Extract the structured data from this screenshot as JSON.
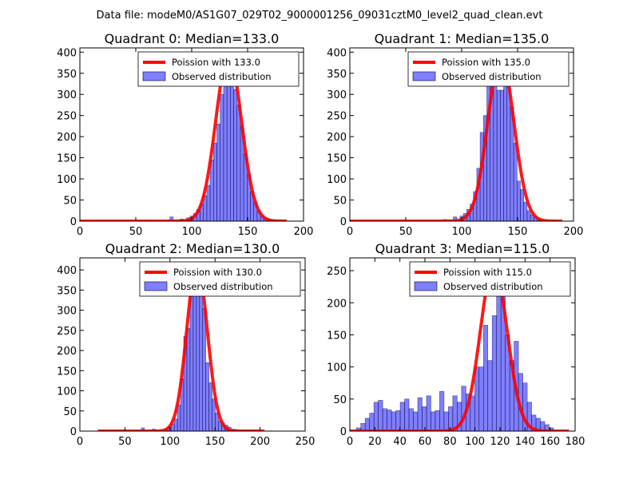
{
  "figure": {
    "suptitle": "Data file: modeM0/AS1G07_029T02_9000001256_09031cztM0_level2_quad_clean.evt"
  },
  "chart_data": [
    {
      "type": "bar",
      "id": "q0",
      "title": "Quadrant 0: Median=133.0",
      "xlim": [
        0,
        200
      ],
      "ylim": [
        0,
        410
      ],
      "xticks": [
        0,
        50,
        100,
        150,
        200
      ],
      "yticks": [
        0,
        50,
        100,
        150,
        200,
        250,
        300,
        350,
        400
      ],
      "legend": {
        "location": "top-right",
        "entries": [
          "Poission with 133.0",
          "Observed distribution"
        ]
      },
      "fit_line": {
        "label": "Poission with 133.0",
        "mean": 133,
        "peak": 392,
        "xrange": [
          0,
          185
        ],
        "color": "#ff0000"
      },
      "bin_width": 3,
      "histogram": {
        "label": "Observed distribution",
        "color": "#0000ff",
        "bins": [
          {
            "x": 82,
            "count": 10
          },
          {
            "x": 91,
            "count": 5
          },
          {
            "x": 97,
            "count": 8
          },
          {
            "x": 100,
            "count": 12
          },
          {
            "x": 103,
            "count": 18
          },
          {
            "x": 106,
            "count": 28
          },
          {
            "x": 109,
            "count": 40
          },
          {
            "x": 112,
            "count": 60
          },
          {
            "x": 115,
            "count": 85
          },
          {
            "x": 118,
            "count": 145
          },
          {
            "x": 121,
            "count": 185
          },
          {
            "x": 124,
            "count": 230
          },
          {
            "x": 127,
            "count": 300
          },
          {
            "x": 130,
            "count": 338
          },
          {
            "x": 133,
            "count": 350
          },
          {
            "x": 136,
            "count": 338
          },
          {
            "x": 139,
            "count": 312
          },
          {
            "x": 142,
            "count": 275
          },
          {
            "x": 145,
            "count": 225
          },
          {
            "x": 148,
            "count": 160
          },
          {
            "x": 151,
            "count": 110
          },
          {
            "x": 154,
            "count": 70
          },
          {
            "x": 157,
            "count": 45
          },
          {
            "x": 160,
            "count": 25
          },
          {
            "x": 163,
            "count": 12
          },
          {
            "x": 166,
            "count": 8
          },
          {
            "x": 169,
            "count": 5
          },
          {
            "x": 172,
            "count": 3
          },
          {
            "x": 175,
            "count": 2
          }
        ]
      }
    },
    {
      "type": "bar",
      "id": "q1",
      "title": "Quadrant 1: Median=135.0",
      "xlim": [
        0,
        200
      ],
      "ylim": [
        0,
        410
      ],
      "xticks": [
        0,
        50,
        100,
        150,
        200
      ],
      "yticks": [
        0,
        50,
        100,
        150,
        200,
        250,
        300,
        350,
        400
      ],
      "legend": {
        "location": "top-right",
        "entries": [
          "Poission with 135.0",
          "Observed distribution"
        ]
      },
      "fit_line": {
        "label": "Poission with 135.0",
        "mean": 135,
        "peak": 390,
        "xrange": [
          0,
          190
        ],
        "color": "#ff0000"
      },
      "bin_width": 3,
      "histogram": {
        "label": "Observed distribution",
        "color": "#0000ff",
        "bins": [
          {
            "x": 85,
            "count": 4
          },
          {
            "x": 94,
            "count": 10
          },
          {
            "x": 100,
            "count": 12
          },
          {
            "x": 103,
            "count": 18
          },
          {
            "x": 106,
            "count": 28
          },
          {
            "x": 109,
            "count": 40
          },
          {
            "x": 112,
            "count": 70
          },
          {
            "x": 115,
            "count": 125
          },
          {
            "x": 118,
            "count": 210
          },
          {
            "x": 121,
            "count": 250
          },
          {
            "x": 124,
            "count": 340
          },
          {
            "x": 127,
            "count": 340
          },
          {
            "x": 130,
            "count": 355
          },
          {
            "x": 133,
            "count": 310
          },
          {
            "x": 136,
            "count": 310
          },
          {
            "x": 139,
            "count": 360
          },
          {
            "x": 142,
            "count": 325
          },
          {
            "x": 145,
            "count": 270
          },
          {
            "x": 148,
            "count": 185
          },
          {
            "x": 151,
            "count": 95
          },
          {
            "x": 154,
            "count": 75
          },
          {
            "x": 157,
            "count": 45
          },
          {
            "x": 160,
            "count": 25
          },
          {
            "x": 163,
            "count": 15
          },
          {
            "x": 166,
            "count": 10
          },
          {
            "x": 169,
            "count": 5
          },
          {
            "x": 172,
            "count": 3
          }
        ]
      }
    },
    {
      "type": "bar",
      "id": "q2",
      "title": "Quadrant 2: Median=130.0",
      "xlim": [
        0,
        250
      ],
      "ylim": [
        0,
        430
      ],
      "xticks": [
        0,
        50,
        100,
        150,
        200,
        250
      ],
      "yticks": [
        0,
        50,
        100,
        150,
        200,
        250,
        300,
        350,
        400
      ],
      "legend": {
        "location": "top-right",
        "entries": [
          "Poission with 130.0",
          "Observed distribution"
        ]
      },
      "fit_line": {
        "label": "Poission with 130.0",
        "mean": 130,
        "peak": 415,
        "xrange": [
          20,
          205
        ],
        "color": "#ff0000"
      },
      "bin_width": 3.5,
      "histogram": {
        "label": "Observed distribution",
        "color": "#0000ff",
        "bins": [
          {
            "x": 70,
            "count": 8
          },
          {
            "x": 82,
            "count": 5
          },
          {
            "x": 96,
            "count": 4
          },
          {
            "x": 99.5,
            "count": 10
          },
          {
            "x": 103,
            "count": 18
          },
          {
            "x": 106.5,
            "count": 30
          },
          {
            "x": 110,
            "count": 65
          },
          {
            "x": 113.5,
            "count": 130
          },
          {
            "x": 117,
            "count": 235
          },
          {
            "x": 120.5,
            "count": 255
          },
          {
            "x": 124,
            "count": 380
          },
          {
            "x": 127.5,
            "count": 415
          },
          {
            "x": 131,
            "count": 405
          },
          {
            "x": 134.5,
            "count": 395
          },
          {
            "x": 138,
            "count": 305
          },
          {
            "x": 141.5,
            "count": 170
          },
          {
            "x": 145,
            "count": 120
          },
          {
            "x": 148.5,
            "count": 80
          },
          {
            "x": 152,
            "count": 45
          },
          {
            "x": 155.5,
            "count": 25
          },
          {
            "x": 159,
            "count": 20
          },
          {
            "x": 162.5,
            "count": 15
          },
          {
            "x": 166,
            "count": 10
          },
          {
            "x": 169.5,
            "count": 5
          },
          {
            "x": 173,
            "count": 4
          },
          {
            "x": 176.5,
            "count": 3
          },
          {
            "x": 196,
            "count": 2
          }
        ]
      }
    },
    {
      "type": "bar",
      "id": "q3",
      "title": "Quadrant 3: Median=115.0",
      "xlim": [
        0,
        180
      ],
      "ylim": [
        0,
        270
      ],
      "xticks": [
        0,
        20,
        40,
        60,
        80,
        100,
        120,
        140,
        160,
        180
      ],
      "yticks": [
        0,
        50,
        100,
        150,
        200,
        250
      ],
      "legend": {
        "location": "top-right",
        "entries": [
          "Poission with 115.0",
          "Observed distribution"
        ]
      },
      "fit_line": {
        "label": "Poission with 115.0",
        "mean": 115,
        "peak": 258,
        "xrange": [
          0,
          175
        ],
        "color": "#ff0000"
      },
      "bin_width": 3.5,
      "histogram": {
        "label": "Observed distribution",
        "color": "#0000ff",
        "bins": [
          {
            "x": 7,
            "count": 5
          },
          {
            "x": 10.5,
            "count": 12
          },
          {
            "x": 14,
            "count": 20
          },
          {
            "x": 17.5,
            "count": 28
          },
          {
            "x": 21,
            "count": 45
          },
          {
            "x": 24.5,
            "count": 48
          },
          {
            "x": 28,
            "count": 35
          },
          {
            "x": 31.5,
            "count": 33
          },
          {
            "x": 35,
            "count": 30
          },
          {
            "x": 38.5,
            "count": 32
          },
          {
            "x": 42,
            "count": 45
          },
          {
            "x": 45.5,
            "count": 50
          },
          {
            "x": 49,
            "count": 35
          },
          {
            "x": 52.5,
            "count": 30
          },
          {
            "x": 56,
            "count": 52
          },
          {
            "x": 59.5,
            "count": 38
          },
          {
            "x": 63,
            "count": 55
          },
          {
            "x": 66.5,
            "count": 30
          },
          {
            "x": 70,
            "count": 32
          },
          {
            "x": 73.5,
            "count": 62
          },
          {
            "x": 77,
            "count": 30
          },
          {
            "x": 80.5,
            "count": 38
          },
          {
            "x": 84,
            "count": 55
          },
          {
            "x": 87.5,
            "count": 45
          },
          {
            "x": 91,
            "count": 70
          },
          {
            "x": 94.5,
            "count": 58
          },
          {
            "x": 98,
            "count": 55
          },
          {
            "x": 101.5,
            "count": 100
          },
          {
            "x": 105,
            "count": 100
          },
          {
            "x": 108.5,
            "count": 165
          },
          {
            "x": 112,
            "count": 110
          },
          {
            "x": 115.5,
            "count": 180
          },
          {
            "x": 119,
            "count": 250
          },
          {
            "x": 122.5,
            "count": 235
          },
          {
            "x": 126,
            "count": 150
          },
          {
            "x": 129.5,
            "count": 110
          },
          {
            "x": 133,
            "count": 140
          },
          {
            "x": 136.5,
            "count": 90
          },
          {
            "x": 140,
            "count": 75
          },
          {
            "x": 143.5,
            "count": 45
          },
          {
            "x": 147,
            "count": 25
          },
          {
            "x": 150.5,
            "count": 20
          },
          {
            "x": 154,
            "count": 15
          },
          {
            "x": 157.5,
            "count": 10
          },
          {
            "x": 161,
            "count": 5
          }
        ]
      }
    }
  ]
}
